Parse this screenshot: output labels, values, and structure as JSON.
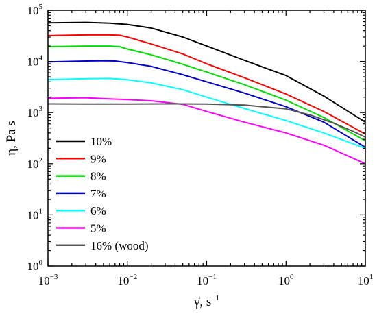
{
  "chart_data": {
    "type": "line",
    "xlabel": "γ̇, s",
    "xlabel_exp": "−1",
    "ylabel": "η, Pa s",
    "x_scale": "log",
    "y_scale": "log",
    "xlim": [
      0.001,
      10
    ],
    "ylim": [
      1,
      100000
    ],
    "grid": false,
    "legend_position": "left-bottom",
    "x_ticks": [
      {
        "base": "10",
        "exp": "−3",
        "value": 0.001
      },
      {
        "base": "10",
        "exp": "−2",
        "value": 0.01
      },
      {
        "base": "10",
        "exp": "−1",
        "value": 0.1
      },
      {
        "base": "10",
        "exp": "0",
        "value": 1
      },
      {
        "base": "10",
        "exp": "1",
        "value": 10
      }
    ],
    "y_ticks": [
      {
        "base": "10",
        "exp": "0",
        "value": 1
      },
      {
        "base": "10",
        "exp": "1",
        "value": 10
      },
      {
        "base": "10",
        "exp": "2",
        "value": 100
      },
      {
        "base": "10",
        "exp": "3",
        "value": 1000
      },
      {
        "base": "10",
        "exp": "4",
        "value": 10000
      },
      {
        "base": "10",
        "exp": "5",
        "value": 100000
      }
    ],
    "series": [
      {
        "name": "10%",
        "color": "#000000",
        "x": [
          0.001,
          0.003,
          0.006,
          0.01,
          0.02,
          0.05,
          0.1,
          0.3,
          1,
          3,
          10
        ],
        "y": [
          57000,
          58000,
          56000,
          53000,
          45000,
          30000,
          20000,
          10500,
          5300,
          2100,
          650
        ]
      },
      {
        "name": "9%",
        "color": "#ff0000",
        "x": [
          0.001,
          0.003,
          0.006,
          0.008,
          0.01,
          0.02,
          0.05,
          0.1,
          0.3,
          1,
          3,
          10
        ],
        "y": [
          32000,
          33000,
          33000,
          32500,
          30000,
          22000,
          14000,
          9000,
          4800,
          2300,
          1050,
          380
        ]
      },
      {
        "name": "8%",
        "color": "#00dd00",
        "x": [
          0.001,
          0.003,
          0.006,
          0.008,
          0.01,
          0.02,
          0.05,
          0.1,
          0.3,
          1,
          3,
          10
        ],
        "y": [
          19500,
          20000,
          20000,
          19500,
          17500,
          13500,
          8800,
          6200,
          3500,
          1750,
          800,
          280
        ]
      },
      {
        "name": "7%",
        "color": "#0000cc",
        "x": [
          0.001,
          0.003,
          0.005,
          0.007,
          0.01,
          0.02,
          0.05,
          0.1,
          0.3,
          1,
          3,
          10
        ],
        "y": [
          9800,
          10200,
          10300,
          10200,
          9500,
          8000,
          5500,
          4000,
          2400,
          1300,
          650,
          210
        ]
      },
      {
        "name": "6%",
        "color": "#00ffff",
        "x": [
          0.001,
          0.003,
          0.006,
          0.01,
          0.02,
          0.05,
          0.1,
          0.3,
          1,
          3,
          10
        ],
        "y": [
          4400,
          4600,
          4650,
          4400,
          3800,
          2800,
          2000,
          1200,
          700,
          400,
          200
        ]
      },
      {
        "name": "5%",
        "color": "#ff00ff",
        "x": [
          0.001,
          0.003,
          0.006,
          0.01,
          0.02,
          0.05,
          0.1,
          0.3,
          1,
          3,
          10
        ],
        "y": [
          1900,
          1950,
          1850,
          1800,
          1700,
          1450,
          1050,
          650,
          400,
          230,
          100
        ]
      },
      {
        "name": "16% (wood)",
        "color": "#555555",
        "x": [
          0.001,
          0.003,
          0.01,
          0.03,
          0.1,
          0.3,
          1,
          2,
          4,
          7,
          10
        ],
        "y": [
          1480,
          1470,
          1470,
          1480,
          1470,
          1400,
          1180,
          900,
          620,
          430,
          330
        ]
      }
    ]
  }
}
